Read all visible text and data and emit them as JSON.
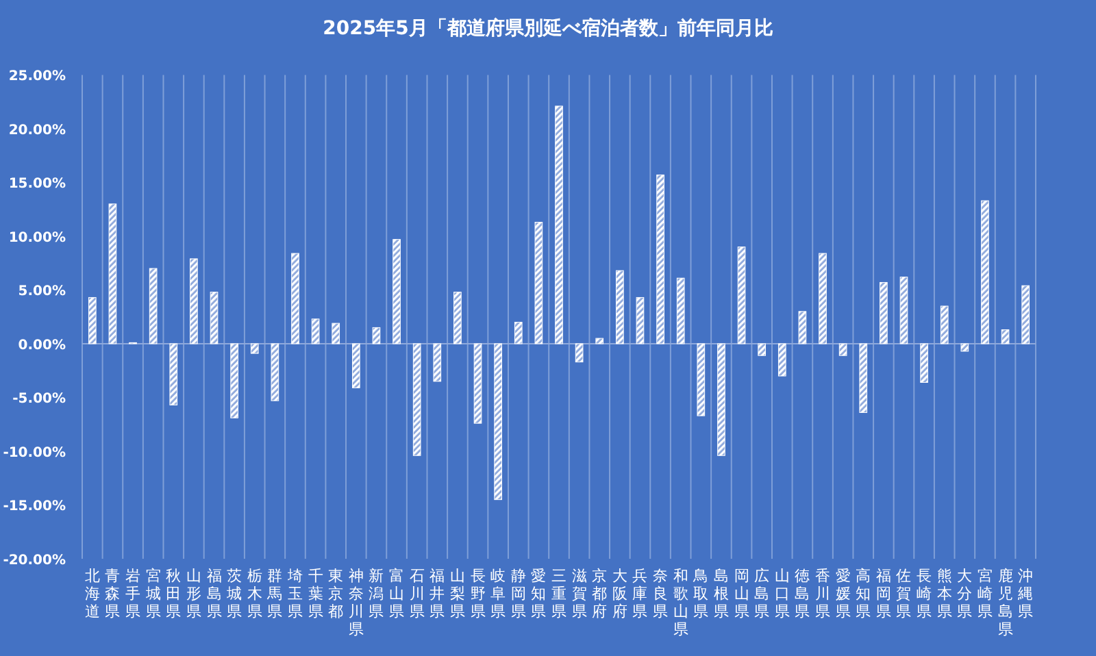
{
  "chart_data": {
    "type": "bar",
    "title": "2025年5月「都道府県別延べ宿泊者数」前年同月比",
    "categories": [
      "北海道",
      "青森県",
      "岩手県",
      "宮城県",
      "秋田県",
      "山形県",
      "福島県",
      "茨城県",
      "栃木県",
      "群馬県",
      "埼玉県",
      "千葉県",
      "東京都",
      "神奈川県",
      "新潟県",
      "富山県",
      "石川県",
      "福井県",
      "山梨県",
      "長野県",
      "岐阜県",
      "静岡県",
      "愛知県",
      "三重県",
      "滋賀県",
      "京都府",
      "大阪府",
      "兵庫県",
      "奈良県",
      "和歌山県",
      "鳥取県",
      "島根県",
      "岡山県",
      "広島県",
      "山口県",
      "徳島県",
      "香川県",
      "愛媛県",
      "高知県",
      "福岡県",
      "佐賀県",
      "長崎県",
      "熊本県",
      "大分県",
      "宮崎県",
      "鹿児島県",
      "沖縄県"
    ],
    "values": [
      4.3,
      13.0,
      0.1,
      7.0,
      -5.7,
      7.9,
      4.8,
      -6.9,
      -0.9,
      -5.3,
      8.4,
      2.3,
      1.9,
      -4.1,
      1.5,
      9.7,
      -10.4,
      -3.5,
      4.8,
      -7.4,
      -14.5,
      2.0,
      11.3,
      22.1,
      -1.7,
      0.5,
      6.8,
      4.3,
      15.7,
      6.1,
      -6.7,
      -10.4,
      9.0,
      -1.1,
      -3.0,
      3.0,
      8.4,
      -1.1,
      -6.4,
      5.7,
      6.2,
      -3.6,
      3.5,
      -0.7,
      13.3,
      1.3,
      5.4
    ],
    "color": "#ffffff",
    "ylim": [
      -20,
      25
    ],
    "yticks": [
      {
        "value": 25,
        "label": "25.00%"
      },
      {
        "value": 20,
        "label": "20.00%"
      },
      {
        "value": 15,
        "label": "15.00%"
      },
      {
        "value": 10,
        "label": "10.00%"
      },
      {
        "value": 5,
        "label": "5.00%"
      },
      {
        "value": 0,
        "label": "0.00%"
      },
      {
        "value": -5,
        "label": "-5.00%"
      },
      {
        "value": -10,
        "label": "-10.00%"
      },
      {
        "value": -15,
        "label": "-15.00%"
      },
      {
        "value": -20,
        "label": "-20.00%"
      }
    ],
    "grid": "x",
    "ref_lines": [
      {
        "axis": "y",
        "value": 0,
        "color": "#8fa9dc"
      }
    ]
  }
}
